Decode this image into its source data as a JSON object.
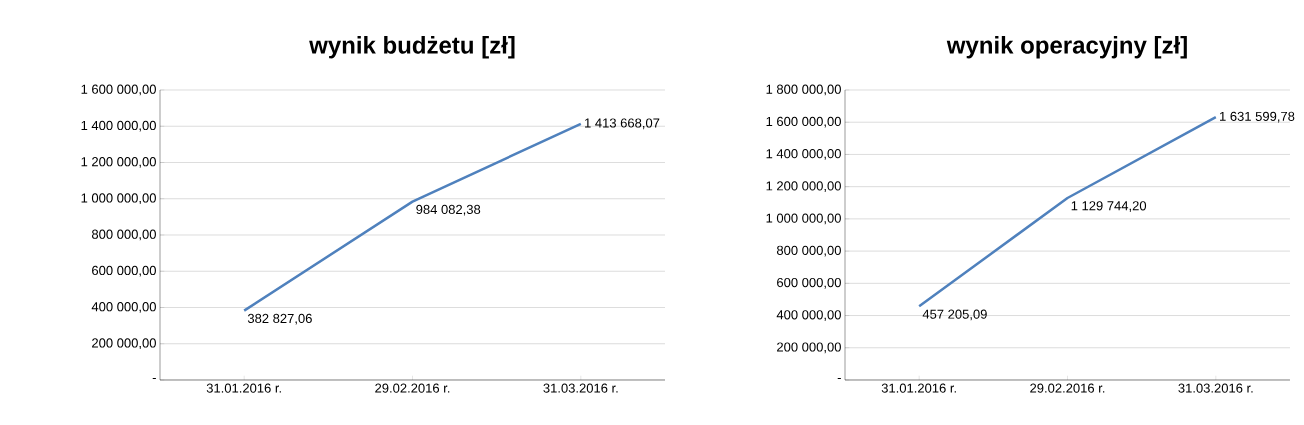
{
  "chart_data": [
    {
      "type": "line",
      "title": "wynik budżetu [zł]",
      "categories": [
        "31.01.2016 r.",
        "29.02.2016 r.",
        "31.03.2016 r."
      ],
      "series": [
        {
          "color": "#4f81bd",
          "values": [
            382827.06,
            984082.38,
            1413668.07
          ],
          "value_labels": [
            "382 827,06",
            "984 082,38",
            "1 413 668,07"
          ]
        }
      ],
      "ylim": [
        0,
        1600000
      ],
      "yticks": [
        {
          "value": 0,
          "label": "-"
        },
        {
          "value": 200000,
          "label": "200 000,00"
        },
        {
          "value": 400000,
          "label": "400 000,00"
        },
        {
          "value": 600000,
          "label": "600 000,00"
        },
        {
          "value": 800000,
          "label": "800 000,00"
        },
        {
          "value": 1000000,
          "label": "1 000 000,00"
        },
        {
          "value": 1200000,
          "label": "1 200 000,00"
        },
        {
          "value": 1400000,
          "label": "1 400 000,00"
        },
        {
          "value": 1600000,
          "label": "1 600 000,00"
        }
      ],
      "grid": "y"
    },
    {
      "type": "line",
      "title": "wynik operacyjny [zł]",
      "categories": [
        "31.01.2016 r.",
        "29.02.2016 r.",
        "31.03.2016 r."
      ],
      "series": [
        {
          "color": "#4f81bd",
          "values": [
            457205.09,
            1129744.2,
            1631599.78
          ],
          "value_labels": [
            "457 205,09",
            "1 129 744,20",
            "1 631 599,78"
          ]
        }
      ],
      "ylim": [
        0,
        1800000
      ],
      "yticks": [
        {
          "value": 0,
          "label": "-"
        },
        {
          "value": 200000,
          "label": "200 000,00"
        },
        {
          "value": 400000,
          "label": "400 000,00"
        },
        {
          "value": 600000,
          "label": "600 000,00"
        },
        {
          "value": 800000,
          "label": "800 000,00"
        },
        {
          "value": 1000000,
          "label": "1 000 000,00"
        },
        {
          "value": 1200000,
          "label": "1 200 000,00"
        },
        {
          "value": 1400000,
          "label": "1 400 000,00"
        },
        {
          "value": 1600000,
          "label": "1 600 000,00"
        },
        {
          "value": 1800000,
          "label": "1 800 000,00"
        }
      ],
      "grid": "y"
    }
  ]
}
